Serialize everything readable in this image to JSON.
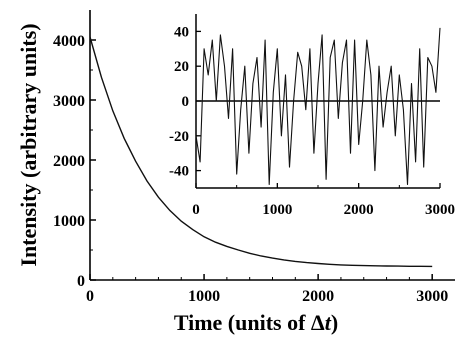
{
  "chart_data": [
    {
      "type": "line",
      "xlabel": "Time (units of Δt)",
      "xlabel_parts": [
        "Time (units of ",
        "Δ",
        "t",
        ")"
      ],
      "ylabel": "Intensity (arbitrary units)",
      "xlim": [
        0,
        3200
      ],
      "ylim": [
        0,
        4500
      ],
      "x_ticks": [
        0,
        1000,
        2000,
        3000
      ],
      "y_ticks": [
        0,
        1000,
        2000,
        3000,
        4000
      ],
      "grid": false,
      "series": [
        {
          "x": [
            0,
            100,
            200,
            300,
            400,
            500,
            600,
            700,
            800,
            900,
            1000,
            1100,
            1200,
            1300,
            1400,
            1500,
            1600,
            1700,
            1800,
            1900,
            2000,
            2100,
            2200,
            2300,
            2400,
            2500,
            2600,
            2700,
            2800,
            2900,
            3000
          ],
          "values": [
            4050,
            3380,
            2820,
            2360,
            1980,
            1650,
            1380,
            1160,
            980,
            840,
            720,
            630,
            560,
            500,
            445,
            400,
            365,
            335,
            310,
            290,
            275,
            262,
            252,
            245,
            240,
            236,
            233,
            231,
            229,
            228,
            227
          ]
        }
      ]
    },
    {
      "type": "line",
      "xlim": [
        0,
        3000
      ],
      "ylim": [
        -50,
        50
      ],
      "x_ticks": [
        0,
        1000,
        2000,
        3000
      ],
      "y_ticks": [
        -40,
        -20,
        0,
        20,
        40
      ],
      "grid": false,
      "zero_line": true,
      "series": [
        {
          "x": [
            0,
            50,
            100,
            150,
            200,
            250,
            300,
            350,
            400,
            450,
            500,
            550,
            600,
            650,
            700,
            750,
            800,
            850,
            900,
            950,
            1000,
            1050,
            1100,
            1150,
            1200,
            1250,
            1300,
            1350,
            1400,
            1450,
            1500,
            1550,
            1600,
            1650,
            1700,
            1750,
            1800,
            1850,
            1900,
            1950,
            2000,
            2050,
            2100,
            2150,
            2200,
            2250,
            2300,
            2350,
            2400,
            2450,
            2500,
            2550,
            2600,
            2650,
            2700,
            2750,
            2800,
            2850,
            2900,
            2950,
            3000
          ],
          "values": [
            -20,
            -35,
            30,
            15,
            35,
            0,
            38,
            20,
            -10,
            30,
            -42,
            -5,
            20,
            -30,
            10,
            25,
            -15,
            35,
            -48,
            5,
            30,
            -20,
            15,
            -38,
            0,
            28,
            20,
            -5,
            30,
            -30,
            10,
            38,
            -45,
            25,
            35,
            -10,
            22,
            35,
            -30,
            35,
            -25,
            0,
            35,
            15,
            -40,
            20,
            -15,
            5,
            20,
            -20,
            15,
            -5,
            -48,
            10,
            -35,
            30,
            -38,
            25,
            20,
            5,
            42
          ]
        }
      ]
    }
  ]
}
